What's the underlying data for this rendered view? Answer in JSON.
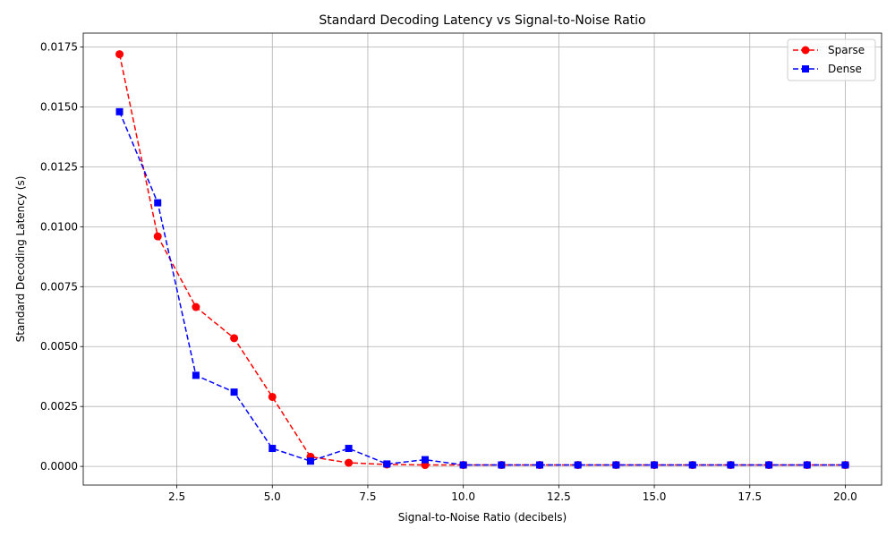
{
  "chart_data": {
    "type": "line",
    "title": "Standard Decoding Latency vs Signal-to-Noise Ratio",
    "xlabel": "Signal-to-Noise Ratio (decibels)",
    "ylabel": "Standard Decoding Latency (s)",
    "xlim": [
      0.05,
      20.95
    ],
    "ylim": [
      -0.00078,
      0.01808
    ],
    "xticks": [
      2.5,
      5.0,
      7.5,
      10.0,
      12.5,
      15.0,
      17.5,
      20.0
    ],
    "xtick_labels": [
      "2.5",
      "5.0",
      "7.5",
      "10.0",
      "12.5",
      "15.0",
      "17.5",
      "20.0"
    ],
    "yticks": [
      0.0,
      0.0025,
      0.005,
      0.0075,
      0.01,
      0.0125,
      0.015,
      0.0175
    ],
    "ytick_labels": [
      "0.0000",
      "0.0025",
      "0.0050",
      "0.0075",
      "0.0100",
      "0.0125",
      "0.0150",
      "0.0175"
    ],
    "grid": true,
    "legend_position": "top-right",
    "x": [
      1,
      2,
      3,
      4,
      5,
      6,
      7,
      8,
      9,
      10,
      11,
      12,
      13,
      14,
      15,
      16,
      17,
      18,
      19,
      20
    ],
    "series": [
      {
        "name": "Sparse",
        "color": "#ff0000",
        "marker": "circle",
        "line_style": "dashed",
        "values": [
          0.0172,
          0.0096,
          0.00665,
          0.00535,
          0.0029,
          0.0004,
          0.00015,
          8e-05,
          6e-05,
          6e-05,
          6e-05,
          6e-05,
          6e-05,
          6e-05,
          6e-05,
          6e-05,
          6e-05,
          6e-05,
          6e-05,
          6e-05
        ]
      },
      {
        "name": "Dense",
        "color": "#0000ff",
        "marker": "square",
        "line_style": "dashed",
        "values": [
          0.0148,
          0.011,
          0.0038,
          0.0031,
          0.00075,
          0.00022,
          0.00075,
          0.0001,
          0.00028,
          6e-05,
          6e-05,
          6e-05,
          6e-05,
          6e-05,
          6e-05,
          6e-05,
          6e-05,
          6e-05,
          6e-05,
          6e-05
        ]
      }
    ]
  }
}
